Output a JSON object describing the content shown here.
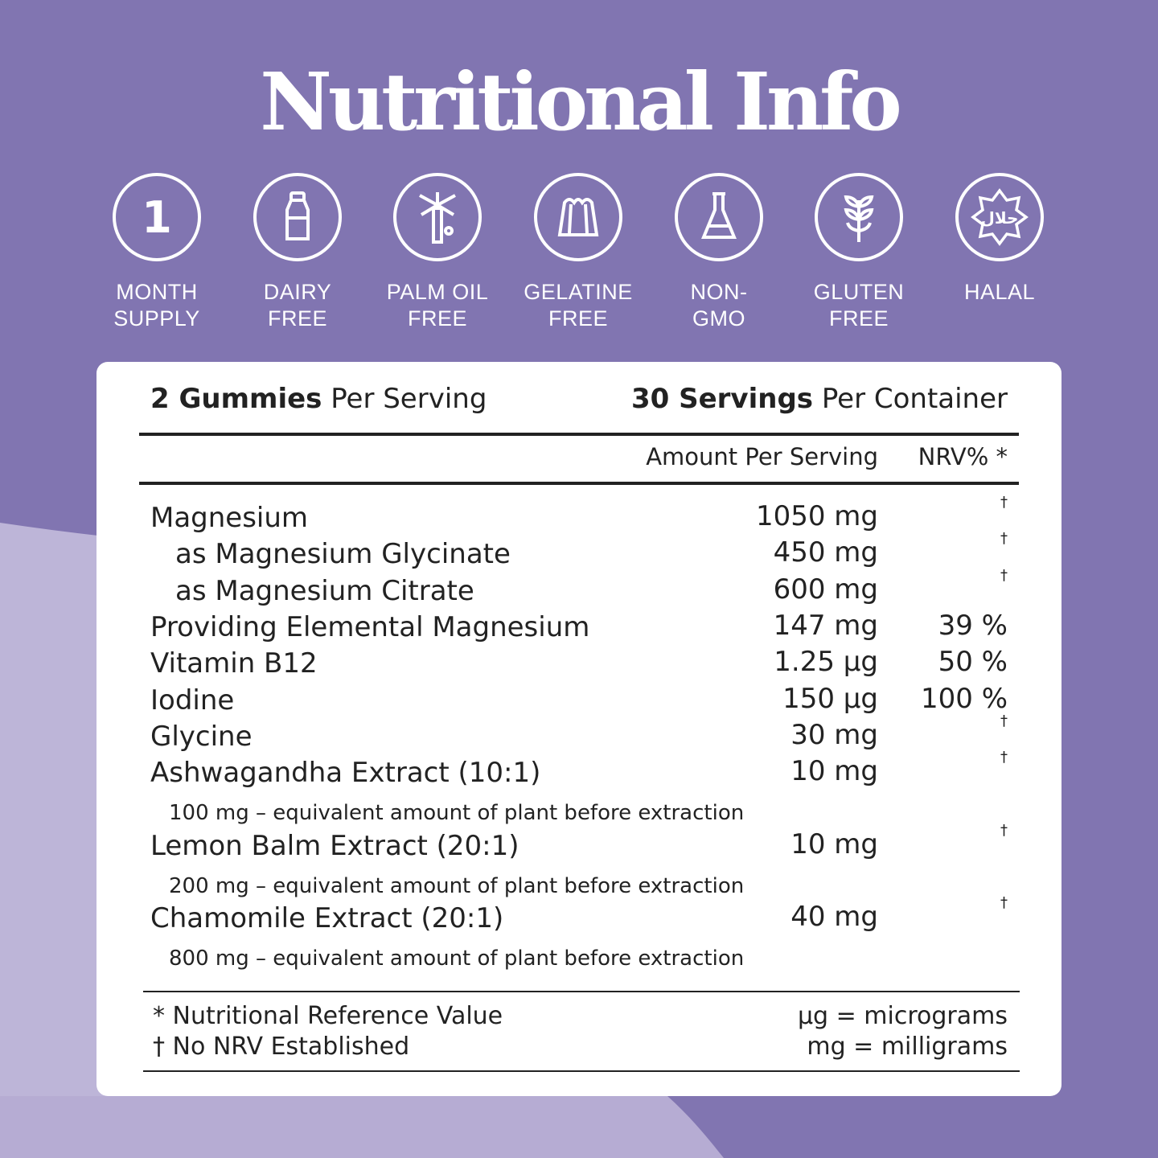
{
  "title": "Nutritional Info",
  "colors": {
    "background": "#8175b1",
    "background_light": "#bdb5d8",
    "card": "#ffffff",
    "text": "#222222"
  },
  "badges": [
    {
      "icon": "number-one-icon",
      "line1": "MONTH",
      "line2": "SUPPLY"
    },
    {
      "icon": "milk-bottle-icon",
      "line1": "DAIRY",
      "line2": "FREE"
    },
    {
      "icon": "palm-tree-icon",
      "line1": "PALM OIL",
      "line2": "FREE"
    },
    {
      "icon": "jelly-icon",
      "line1": "GELATINE",
      "line2": "FREE"
    },
    {
      "icon": "flask-icon",
      "line1": "NON-",
      "line2": "GMO"
    },
    {
      "icon": "wheat-icon",
      "line1": "GLUTEN",
      "line2": "FREE"
    },
    {
      "icon": "halal-seal-icon",
      "line1": "HALAL",
      "line2": ""
    }
  ],
  "one_glyph": "1",
  "halal_glyph": "حلال",
  "serving": {
    "size_bold": "2 Gummies",
    "size_rest": " Per Serving",
    "servings_bold": "30 Servings",
    "servings_rest": " Per Container"
  },
  "headers": {
    "amount": "Amount Per Serving",
    "nrv": "NRV% *"
  },
  "rows": [
    {
      "name": "Magnesium",
      "amount": "1050 mg",
      "nrv": "†"
    },
    {
      "name": "as Magnesium Glycinate",
      "amount": "450 mg",
      "nrv": "†"
    },
    {
      "name": "as Magnesium Citrate",
      "amount": "600 mg",
      "nrv": "†"
    },
    {
      "name": "Providing Elemental Magnesium",
      "amount": "147 mg",
      "nrv": "39 %"
    },
    {
      "name": "Vitamin B12",
      "amount": "1.25 µg",
      "nrv": "50 %"
    },
    {
      "name": "Iodine",
      "amount": "150 µg",
      "nrv": "100 %"
    },
    {
      "name": "Glycine",
      "amount": "30 mg",
      "nrv": "†"
    },
    {
      "name": "Ashwagandha Extract (10:1)",
      "amount": "10 mg",
      "nrv": "†",
      "note": "100 mg – equivalent amount of plant before extraction"
    },
    {
      "name": "Lemon Balm Extract (20:1)",
      "amount": "10 mg",
      "nrv": "†",
      "note": "200 mg – equivalent amount of plant before extraction"
    },
    {
      "name": "Chamomile Extract (20:1)",
      "amount": "40 mg",
      "nrv": "†",
      "note": "800 mg – equivalent amount of plant before extraction"
    }
  ],
  "footer": {
    "nrv_def": "* Nutritional Reference Value",
    "no_nrv": "† No NRV Established",
    "ug": "µg = micrograms",
    "mg": "mg = milligrams"
  }
}
